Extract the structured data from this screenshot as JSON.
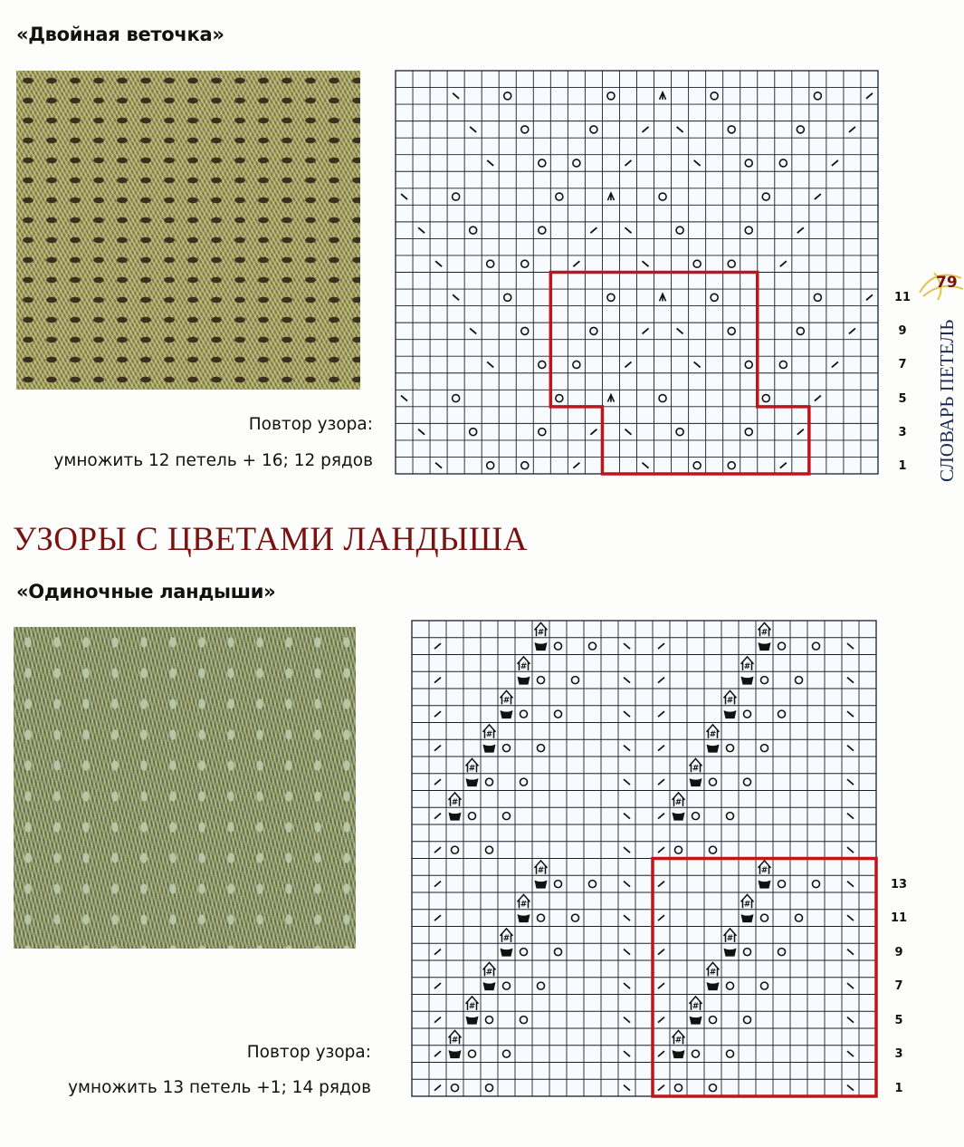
{
  "page": {
    "number": "79",
    "side_title": "СЛОВАРЬ ПЕТЕЛЬ",
    "section_title": "УЗОРЫ С ЦВЕТАМИ ЛАНДЫША",
    "accent_color": "#7a1212",
    "repeat_outline_color": "#c0141a"
  },
  "patterns": [
    {
      "title": "«Двойная веточка»",
      "repeat_label": "Повтор узора:",
      "repeat_text": "умножить 12 петель + 16; 12 рядов",
      "row_labels": [
        "11",
        "9",
        "7",
        "5",
        "3",
        "1"
      ],
      "chart": {
        "columns": 28,
        "rows": 24,
        "pattern_rows": 12,
        "repeat_box": [
          {
            "rows": [
              1,
              4
            ],
            "cols": [
              13,
              24
            ]
          },
          {
            "rows": [
              5,
              12
            ],
            "cols": [
              10,
              21
            ]
          }
        ],
        "symbols": {
          "1": [
            [
              3,
              "\\"
            ],
            [
              6,
              "o"
            ],
            [
              8,
              "o"
            ],
            [
              11,
              "/"
            ],
            [
              15,
              "\\"
            ],
            [
              18,
              "o"
            ],
            [
              20,
              "o"
            ],
            [
              23,
              "/"
            ]
          ],
          "3": [
            [
              2,
              "\\"
            ],
            [
              5,
              "o"
            ],
            [
              9,
              "o"
            ],
            [
              12,
              "/"
            ],
            [
              14,
              "\\"
            ],
            [
              17,
              "o"
            ],
            [
              21,
              "o"
            ],
            [
              24,
              "/"
            ]
          ],
          "5": [
            [
              1,
              "\\"
            ],
            [
              4,
              "o"
            ],
            [
              10,
              "o"
            ],
            [
              13,
              "^"
            ],
            [
              16,
              "o"
            ],
            [
              22,
              "o"
            ],
            [
              25,
              "/"
            ]
          ],
          "7": [
            [
              6,
              "\\"
            ],
            [
              9,
              "o"
            ],
            [
              11,
              "o"
            ],
            [
              14,
              "/"
            ],
            [
              18,
              "\\"
            ],
            [
              21,
              "o"
            ],
            [
              23,
              "o"
            ],
            [
              26,
              "/"
            ]
          ],
          "9": [
            [
              5,
              "\\"
            ],
            [
              8,
              "o"
            ],
            [
              12,
              "o"
            ],
            [
              15,
              "/"
            ],
            [
              17,
              "\\"
            ],
            [
              20,
              "o"
            ],
            [
              24,
              "o"
            ],
            [
              27,
              "/"
            ]
          ],
          "11": [
            [
              4,
              "\\"
            ],
            [
              7,
              "o"
            ],
            [
              13,
              "o"
            ],
            [
              16,
              "^"
            ],
            [
              19,
              "o"
            ],
            [
              25,
              "o"
            ],
            [
              28,
              "/"
            ]
          ]
        }
      }
    },
    {
      "title": "«Одиночные ландыши»",
      "repeat_label": "Повтор узора:",
      "repeat_text": "умножить 13 петель +1; 14 рядов",
      "row_labels": [
        "13",
        "11",
        "9",
        "7",
        "5",
        "3",
        "1"
      ],
      "chart": {
        "columns": 27,
        "rows": 28,
        "pattern_rows": 14,
        "repeat_box": [
          {
            "rows": [
              1,
              14
            ],
            "cols": [
              15,
              27
            ]
          }
        ],
        "symbols": {
          "1": [
            [
              2,
              "/"
            ],
            [
              3,
              "o"
            ],
            [
              5,
              "o"
            ],
            [
              13,
              "\\"
            ],
            [
              15,
              "/"
            ],
            [
              16,
              "o"
            ],
            [
              18,
              "o"
            ],
            [
              26,
              "\\"
            ]
          ],
          "3": [
            [
              2,
              "/"
            ],
            [
              3,
              "cup"
            ],
            [
              4,
              "o"
            ],
            [
              6,
              "o"
            ],
            [
              13,
              "\\"
            ],
            [
              15,
              "/"
            ],
            [
              16,
              "cup"
            ],
            [
              17,
              "o"
            ],
            [
              19,
              "o"
            ],
            [
              26,
              "\\"
            ]
          ],
          "4": [
            [
              3,
              "bobble"
            ],
            [
              16,
              "bobble"
            ]
          ],
          "5": [
            [
              2,
              "/"
            ],
            [
              4,
              "cup"
            ],
            [
              5,
              "o"
            ],
            [
              7,
              "o"
            ],
            [
              13,
              "\\"
            ],
            [
              15,
              "/"
            ],
            [
              17,
              "cup"
            ],
            [
              18,
              "o"
            ],
            [
              20,
              "o"
            ],
            [
              26,
              "\\"
            ]
          ],
          "6": [
            [
              4,
              "bobble"
            ],
            [
              17,
              "bobble"
            ]
          ],
          "7": [
            [
              2,
              "/"
            ],
            [
              5,
              "cup"
            ],
            [
              6,
              "o"
            ],
            [
              8,
              "o"
            ],
            [
              13,
              "\\"
            ],
            [
              15,
              "/"
            ],
            [
              18,
              "cup"
            ],
            [
              19,
              "o"
            ],
            [
              21,
              "o"
            ],
            [
              26,
              "\\"
            ]
          ],
          "8": [
            [
              5,
              "bobble"
            ],
            [
              18,
              "bobble"
            ]
          ],
          "9": [
            [
              2,
              "/"
            ],
            [
              6,
              "cup"
            ],
            [
              7,
              "o"
            ],
            [
              9,
              "o"
            ],
            [
              13,
              "\\"
            ],
            [
              15,
              "/"
            ],
            [
              19,
              "cup"
            ],
            [
              20,
              "o"
            ],
            [
              22,
              "o"
            ],
            [
              26,
              "\\"
            ]
          ],
          "10": [
            [
              6,
              "bobble"
            ],
            [
              19,
              "bobble"
            ]
          ],
          "11": [
            [
              2,
              "/"
            ],
            [
              7,
              "cup"
            ],
            [
              8,
              "o"
            ],
            [
              10,
              "o"
            ],
            [
              13,
              "\\"
            ],
            [
              15,
              "/"
            ],
            [
              20,
              "cup"
            ],
            [
              21,
              "o"
            ],
            [
              23,
              "o"
            ],
            [
              26,
              "\\"
            ]
          ],
          "12": [
            [
              7,
              "bobble"
            ],
            [
              20,
              "bobble"
            ]
          ],
          "13": [
            [
              2,
              "/"
            ],
            [
              8,
              "cup"
            ],
            [
              9,
              "o"
            ],
            [
              11,
              "o"
            ],
            [
              13,
              "\\"
            ],
            [
              15,
              "/"
            ],
            [
              21,
              "cup"
            ],
            [
              22,
              "o"
            ],
            [
              24,
              "o"
            ],
            [
              26,
              "\\"
            ]
          ],
          "14": [
            [
              8,
              "bobble"
            ],
            [
              21,
              "bobble"
            ]
          ]
        }
      }
    }
  ]
}
